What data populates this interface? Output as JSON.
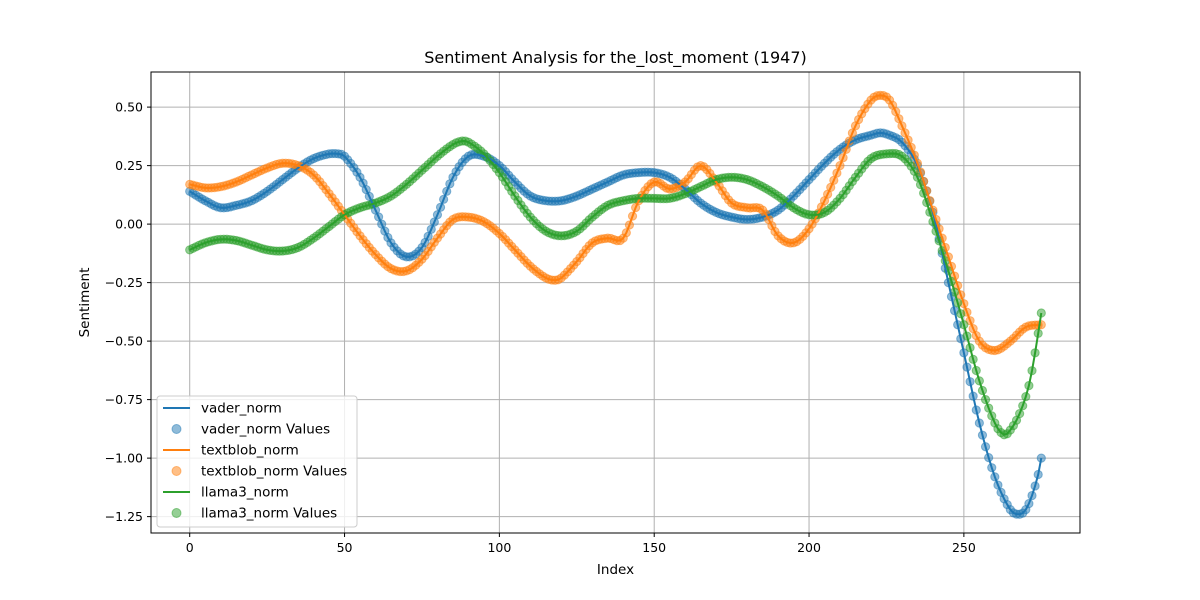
{
  "chart_data": {
    "type": "line",
    "title": "Sentiment Analysis for the_lost_moment (1947)",
    "xlabel": "Index",
    "ylabel": "Sentiment",
    "xlim": [
      -12.5,
      287.5
    ],
    "ylim": [
      -1.32,
      0.65
    ],
    "xticks": [
      0,
      50,
      100,
      150,
      200,
      250
    ],
    "yticks": [
      0.5,
      0.25,
      0.0,
      -0.25,
      -0.5,
      -0.75,
      -1.0,
      -1.25
    ],
    "ytick_labels": [
      "0.50",
      "0.25",
      "0.00",
      "−0.25",
      "−0.50",
      "−0.75",
      "−1.00",
      "−1.25"
    ],
    "grid": true,
    "legend_position": "lower-left",
    "n_points": 276,
    "series": [
      {
        "name": "vader_norm",
        "marker_name": "vader_norm Values",
        "color": "#1f77b4",
        "knots": [
          [
            0,
            0.14
          ],
          [
            5,
            0.1
          ],
          [
            10,
            0.07
          ],
          [
            15,
            0.08
          ],
          [
            20,
            0.1
          ],
          [
            25,
            0.14
          ],
          [
            30,
            0.19
          ],
          [
            35,
            0.24
          ],
          [
            40,
            0.28
          ],
          [
            45,
            0.3
          ],
          [
            48,
            0.3
          ],
          [
            50,
            0.29
          ],
          [
            55,
            0.2
          ],
          [
            60,
            0.06
          ],
          [
            65,
            -0.08
          ],
          [
            70,
            -0.14
          ],
          [
            75,
            -0.1
          ],
          [
            80,
            0.04
          ],
          [
            85,
            0.2
          ],
          [
            90,
            0.29
          ],
          [
            95,
            0.29
          ],
          [
            100,
            0.25
          ],
          [
            105,
            0.18
          ],
          [
            110,
            0.12
          ],
          [
            115,
            0.1
          ],
          [
            120,
            0.1
          ],
          [
            125,
            0.12
          ],
          [
            130,
            0.15
          ],
          [
            135,
            0.18
          ],
          [
            140,
            0.21
          ],
          [
            145,
            0.22
          ],
          [
            150,
            0.22
          ],
          [
            155,
            0.2
          ],
          [
            160,
            0.15
          ],
          [
            165,
            0.09
          ],
          [
            170,
            0.05
          ],
          [
            175,
            0.03
          ],
          [
            180,
            0.02
          ],
          [
            185,
            0.03
          ],
          [
            190,
            0.06
          ],
          [
            195,
            0.12
          ],
          [
            200,
            0.19
          ],
          [
            205,
            0.26
          ],
          [
            210,
            0.32
          ],
          [
            215,
            0.36
          ],
          [
            220,
            0.38
          ],
          [
            223,
            0.39
          ],
          [
            226,
            0.38
          ],
          [
            230,
            0.35
          ],
          [
            235,
            0.25
          ],
          [
            240,
            0.05
          ],
          [
            245,
            -0.25
          ],
          [
            250,
            -0.55
          ],
          [
            255,
            -0.85
          ],
          [
            260,
            -1.08
          ],
          [
            265,
            -1.22
          ],
          [
            268,
            -1.24
          ],
          [
            270,
            -1.22
          ],
          [
            272,
            -1.16
          ],
          [
            274,
            -1.07
          ],
          [
            275,
            -1.0
          ]
        ]
      },
      {
        "name": "textblob_norm",
        "marker_name": "textblob_norm Values",
        "color": "#ff7f0e",
        "knots": [
          [
            0,
            0.17
          ],
          [
            5,
            0.155
          ],
          [
            10,
            0.16
          ],
          [
            15,
            0.18
          ],
          [
            20,
            0.21
          ],
          [
            25,
            0.24
          ],
          [
            30,
            0.26
          ],
          [
            35,
            0.25
          ],
          [
            40,
            0.21
          ],
          [
            45,
            0.13
          ],
          [
            50,
            0.04
          ],
          [
            55,
            -0.05
          ],
          [
            60,
            -0.13
          ],
          [
            65,
            -0.19
          ],
          [
            70,
            -0.2
          ],
          [
            75,
            -0.15
          ],
          [
            80,
            -0.06
          ],
          [
            85,
            0.02
          ],
          [
            90,
            0.03
          ],
          [
            95,
            0.01
          ],
          [
            100,
            -0.04
          ],
          [
            105,
            -0.11
          ],
          [
            110,
            -0.18
          ],
          [
            115,
            -0.23
          ],
          [
            118,
            -0.24
          ],
          [
            120,
            -0.23
          ],
          [
            125,
            -0.16
          ],
          [
            130,
            -0.08
          ],
          [
            135,
            -0.06
          ],
          [
            140,
            -0.06
          ],
          [
            145,
            0.1
          ],
          [
            150,
            0.18
          ],
          [
            155,
            0.15
          ],
          [
            160,
            0.18
          ],
          [
            165,
            0.25
          ],
          [
            170,
            0.18
          ],
          [
            175,
            0.09
          ],
          [
            180,
            0.07
          ],
          [
            185,
            0.06
          ],
          [
            190,
            -0.05
          ],
          [
            195,
            -0.08
          ],
          [
            200,
            -0.02
          ],
          [
            205,
            0.1
          ],
          [
            210,
            0.25
          ],
          [
            215,
            0.42
          ],
          [
            220,
            0.53
          ],
          [
            223,
            0.55
          ],
          [
            226,
            0.53
          ],
          [
            230,
            0.42
          ],
          [
            235,
            0.26
          ],
          [
            240,
            0.06
          ],
          [
            245,
            -0.14
          ],
          [
            250,
            -0.34
          ],
          [
            255,
            -0.5
          ],
          [
            260,
            -0.54
          ],
          [
            265,
            -0.5
          ],
          [
            270,
            -0.44
          ],
          [
            275,
            -0.43
          ]
        ]
      },
      {
        "name": "llama3_norm",
        "marker_name": "llama3_norm Values",
        "color": "#2ca02c",
        "knots": [
          [
            0,
            -0.11
          ],
          [
            5,
            -0.08
          ],
          [
            10,
            -0.065
          ],
          [
            15,
            -0.07
          ],
          [
            20,
            -0.09
          ],
          [
            25,
            -0.11
          ],
          [
            30,
            -0.115
          ],
          [
            35,
            -0.1
          ],
          [
            40,
            -0.06
          ],
          [
            45,
            -0.01
          ],
          [
            50,
            0.04
          ],
          [
            55,
            0.07
          ],
          [
            60,
            0.09
          ],
          [
            65,
            0.12
          ],
          [
            70,
            0.17
          ],
          [
            75,
            0.23
          ],
          [
            80,
            0.29
          ],
          [
            85,
            0.34
          ],
          [
            88,
            0.355
          ],
          [
            90,
            0.35
          ],
          [
            95,
            0.3
          ],
          [
            100,
            0.22
          ],
          [
            105,
            0.12
          ],
          [
            110,
            0.03
          ],
          [
            115,
            -0.03
          ],
          [
            120,
            -0.05
          ],
          [
            125,
            -0.03
          ],
          [
            130,
            0.03
          ],
          [
            135,
            0.08
          ],
          [
            140,
            0.1
          ],
          [
            145,
            0.11
          ],
          [
            150,
            0.11
          ],
          [
            155,
            0.11
          ],
          [
            160,
            0.13
          ],
          [
            165,
            0.16
          ],
          [
            170,
            0.19
          ],
          [
            175,
            0.2
          ],
          [
            180,
            0.19
          ],
          [
            185,
            0.16
          ],
          [
            190,
            0.12
          ],
          [
            195,
            0.07
          ],
          [
            200,
            0.04
          ],
          [
            205,
            0.05
          ],
          [
            210,
            0.11
          ],
          [
            215,
            0.2
          ],
          [
            220,
            0.28
          ],
          [
            225,
            0.3
          ],
          [
            230,
            0.29
          ],
          [
            235,
            0.2
          ],
          [
            240,
            0.01
          ],
          [
            245,
            -0.2
          ],
          [
            250,
            -0.43
          ],
          [
            255,
            -0.67
          ],
          [
            260,
            -0.85
          ],
          [
            263,
            -0.9
          ],
          [
            265,
            -0.88
          ],
          [
            268,
            -0.81
          ],
          [
            271,
            -0.69
          ],
          [
            273,
            -0.55
          ],
          [
            275,
            -0.38
          ]
        ]
      }
    ]
  }
}
